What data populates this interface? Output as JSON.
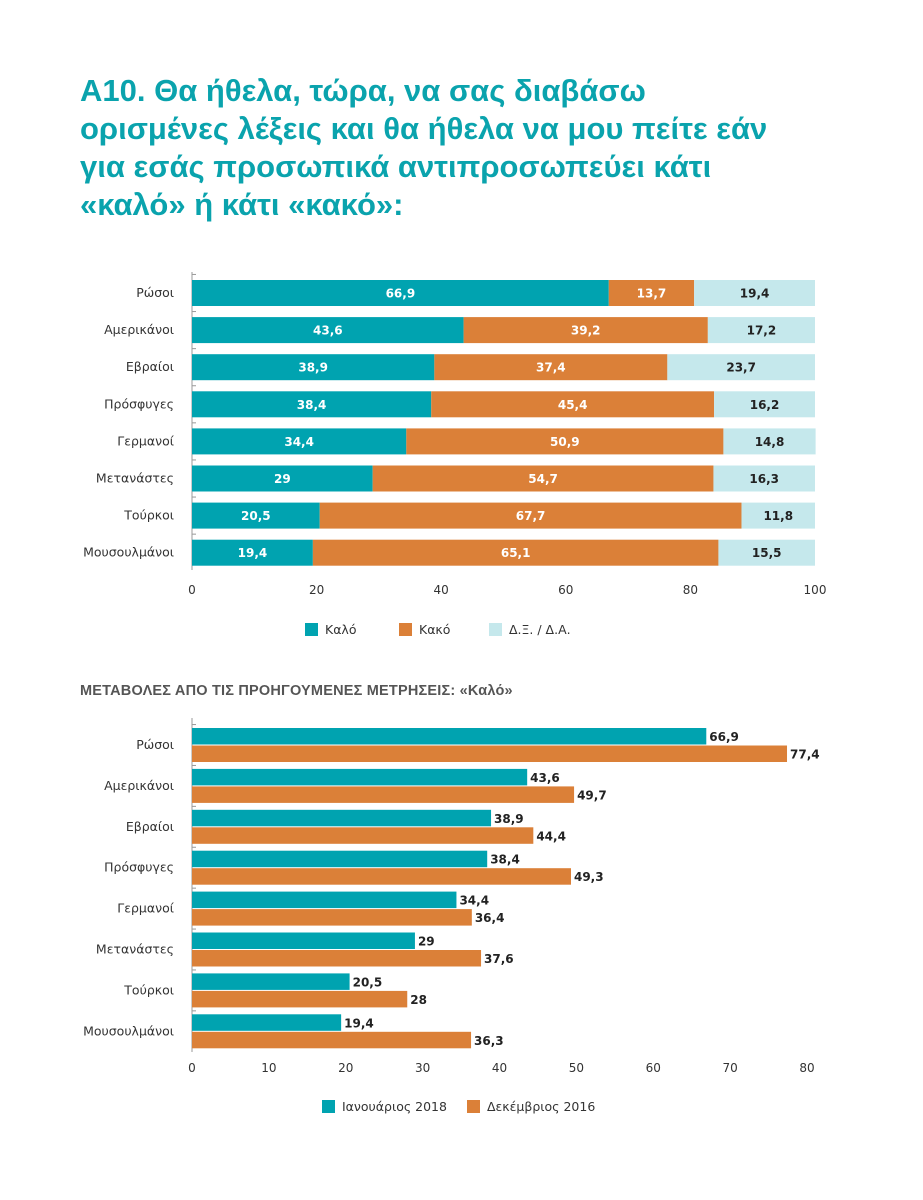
{
  "title": "A10. Θα ήθελα, τώρα, να σας διαβάσω ορισμένες λέξεις και θα ήθελα να μου πείτε εάν για εσάς προσωπικά αντιπροσωπεύει κάτι «καλό» ή κάτι «κακό»:",
  "colors": {
    "title": "#0aa3ad",
    "good": "#00a3b0",
    "bad": "#db8038",
    "dk": "#c5e8ec"
  },
  "chart_data": [
    {
      "type": "bar",
      "orientation": "horizontal",
      "stacked": true,
      "categories": [
        "Ρώσοι",
        "Αμερικάνοι",
        "Εβραίοι",
        "Πρόσφυγες",
        "Γερμανοί",
        "Μετανάστες",
        "Τούρκοι",
        "Μουσουλμάνοι"
      ],
      "series": [
        {
          "name": "Καλό",
          "color": "#00a3b0",
          "values": [
            66.9,
            43.6,
            38.9,
            38.4,
            34.4,
            29,
            20.5,
            19.4
          ],
          "labels": [
            "66,9",
            "43,6",
            "38,9",
            "38,4",
            "34,4",
            "29",
            "20,5",
            "19,4"
          ]
        },
        {
          "name": "Κακό",
          "color": "#db8038",
          "values": [
            13.7,
            39.2,
            37.4,
            45.4,
            50.9,
            54.7,
            67.7,
            65.1
          ],
          "labels": [
            "13,7",
            "39,2",
            "37,4",
            "45,4",
            "50,9",
            "54,7",
            "67,7",
            "65,1"
          ]
        },
        {
          "name": "Δ.Ξ. / Δ.Α.",
          "color": "#c5e8ec",
          "values": [
            19.4,
            17.2,
            23.7,
            16.2,
            14.8,
            16.3,
            11.8,
            15.5
          ],
          "labels": [
            "19,4",
            "17,2",
            "23,7",
            "16,2",
            "14,8",
            "16,3",
            "11,8",
            "15,5"
          ]
        }
      ],
      "xlim": [
        0,
        100
      ],
      "xticks": [
        "0",
        "20",
        "40",
        "60",
        "80",
        "100"
      ],
      "legend": "bottom"
    },
    {
      "type": "bar",
      "orientation": "horizontal",
      "title": "ΜΕΤΑΒΟΛΕΣ ΑΠΟ ΤΙΣ ΠΡΟΗΓΟΥΜΕΝΕΣ ΜΕΤΡΗΣΕΙΣ: «Καλό»",
      "categories": [
        "Ρώσοι",
        "Αμερικάνοι",
        "Εβραίοι",
        "Πρόσφυγες",
        "Γερμανοί",
        "Μετανάστες",
        "Τούρκοι",
        "Μουσουλμάνοι"
      ],
      "series": [
        {
          "name": "Ιανουάριος 2018",
          "color": "#00a3b0",
          "values": [
            66.9,
            43.6,
            38.9,
            38.4,
            34.4,
            29,
            20.5,
            19.4
          ],
          "labels": [
            "66,9",
            "43,6",
            "38,9",
            "38,4",
            "34,4",
            "29",
            "20,5",
            "19,4"
          ]
        },
        {
          "name": "Δεκέμβριος 2016",
          "color": "#db8038",
          "values": [
            77.4,
            49.7,
            44.4,
            49.3,
            36.4,
            37.6,
            28,
            36.3
          ],
          "labels": [
            "77,4",
            "49,7",
            "44,4",
            "49,3",
            "36,4",
            "37,6",
            "28",
            "36,3"
          ]
        }
      ],
      "xlim": [
        0,
        80
      ],
      "xticks": [
        "0",
        "10",
        "20",
        "30",
        "40",
        "50",
        "60",
        "70",
        "80"
      ],
      "legend": "bottom"
    }
  ]
}
